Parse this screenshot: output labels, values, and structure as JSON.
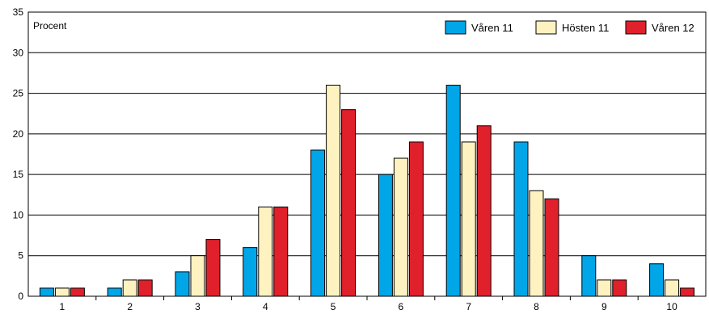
{
  "chart_data": {
    "type": "bar",
    "ylabel": "Procent",
    "ylim": [
      0,
      35
    ],
    "yticks": [
      0,
      5,
      10,
      15,
      20,
      25,
      30,
      35
    ],
    "categories": [
      "1",
      "2",
      "3",
      "4",
      "5",
      "6",
      "7",
      "8",
      "9",
      "10"
    ],
    "series": [
      {
        "name": "Våren 11",
        "color": "#00a6e8",
        "values": [
          1,
          1,
          3,
          6,
          18,
          15,
          26,
          19,
          5,
          4
        ]
      },
      {
        "name": "Hösten 11",
        "color": "#fdf2c0",
        "values": [
          1,
          2,
          5,
          11,
          26,
          17,
          19,
          13,
          2,
          2
        ]
      },
      {
        "name": "Våren 12",
        "color": "#e0202b",
        "values": [
          1,
          2,
          7,
          11,
          23,
          19,
          21,
          12,
          2,
          1
        ]
      }
    ],
    "grid": true,
    "legend": "top-right"
  }
}
